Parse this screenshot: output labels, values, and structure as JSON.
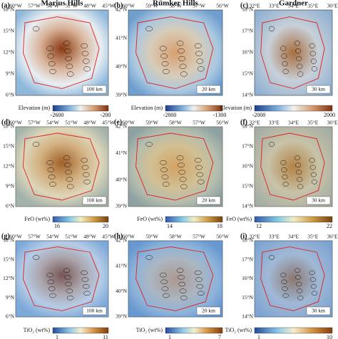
{
  "panels": [
    {
      "label": "(a)",
      "title": "Marius Hills",
      "xticks": [
        "60°W",
        "57°W",
        "54°W",
        "51°W",
        "48°W",
        "45°W"
      ],
      "yticks": [
        "18°N",
        "15°N",
        "12°N",
        "9°N",
        "6°N"
      ],
      "colorbar_label": "Elevation (m)",
      "colorbar_min": "-2600",
      "colorbar_max": "-200",
      "scale": "100 km"
    },
    {
      "label": "(b)",
      "title": "Rümker Hills",
      "xticks": [
        "60°W",
        "59°W",
        "58°W",
        "57°W",
        "56°W"
      ],
      "yticks": [
        "42°N",
        "41°N",
        "40°N",
        "39°N"
      ],
      "colorbar_label": "Elevation (m)",
      "colorbar_min": "-2800",
      "colorbar_max": "-1300",
      "scale": "20 km"
    },
    {
      "label": "(c)",
      "title": "Gardner",
      "xticks": [
        "32°E",
        "33°E",
        "34°E",
        "35°E",
        "36°E"
      ],
      "yticks": [
        "18°N",
        "17°N",
        "16°N",
        "15°N",
        "14°N"
      ],
      "colorbar_label": "Elevation (m)",
      "colorbar_min": "-2000",
      "colorbar_max": "2000",
      "scale": "30 km"
    },
    {
      "label": "(d)",
      "xticks": [
        "60°W",
        "57°W",
        "54°W",
        "51°W",
        "48°W",
        "45°W"
      ],
      "yticks": [
        "18°N",
        "15°N",
        "12°N",
        "9°N",
        "6°N"
      ],
      "colorbar_label": "FeO (wt%)",
      "colorbar_min": "16",
      "colorbar_max": "20",
      "scale": "100 km"
    },
    {
      "label": "(e)",
      "xticks": [
        "60°W",
        "59°W",
        "58°W",
        "57°W",
        "56°W"
      ],
      "yticks": [
        "42°N",
        "41°N",
        "40°N",
        "39°N"
      ],
      "colorbar_label": "FeO (wt%)",
      "colorbar_min": "14",
      "colorbar_max": "18",
      "scale": "20 km"
    },
    {
      "label": "(f)",
      "xticks": [
        "32°E",
        "33°E",
        "34°E",
        "35°E",
        "36°E"
      ],
      "yticks": [
        "18°N",
        "17°N",
        "16°N",
        "15°N",
        "14°N"
      ],
      "colorbar_label": "FeO (wt%)",
      "colorbar_min": "12",
      "colorbar_max": "22",
      "scale": "30 km"
    },
    {
      "label": "(g)",
      "xticks": [
        "60°W",
        "57°W",
        "54°W",
        "51°W",
        "48°W",
        "45°W"
      ],
      "yticks": [
        "18°N",
        "15°N",
        "12°N",
        "9°N",
        "6°N"
      ],
      "colorbar_label": "TiO₂ (wt%)",
      "colorbar_min": "1",
      "colorbar_max": "11",
      "scale": "100 km"
    },
    {
      "label": "(h)",
      "xticks": [
        "60°W",
        "59°W",
        "58°W",
        "57°W",
        "56°W"
      ],
      "yticks": [
        "42°N",
        "41°N",
        "40°N",
        "39°N"
      ],
      "colorbar_label": "TiO₂ (wt%)",
      "colorbar_min": "1",
      "colorbar_max": "7",
      "scale": "20 km"
    },
    {
      "label": "(i)",
      "xticks": [
        "32°E",
        "33°E",
        "34°E",
        "35°E",
        "36°E"
      ],
      "yticks": [
        "18°N",
        "17°N",
        "16°N",
        "15°N",
        "14°N"
      ],
      "colorbar_label": "TiO₂ (wt%)",
      "colorbar_min": "1",
      "colorbar_max": "10",
      "scale": "30 km"
    }
  ]
}
